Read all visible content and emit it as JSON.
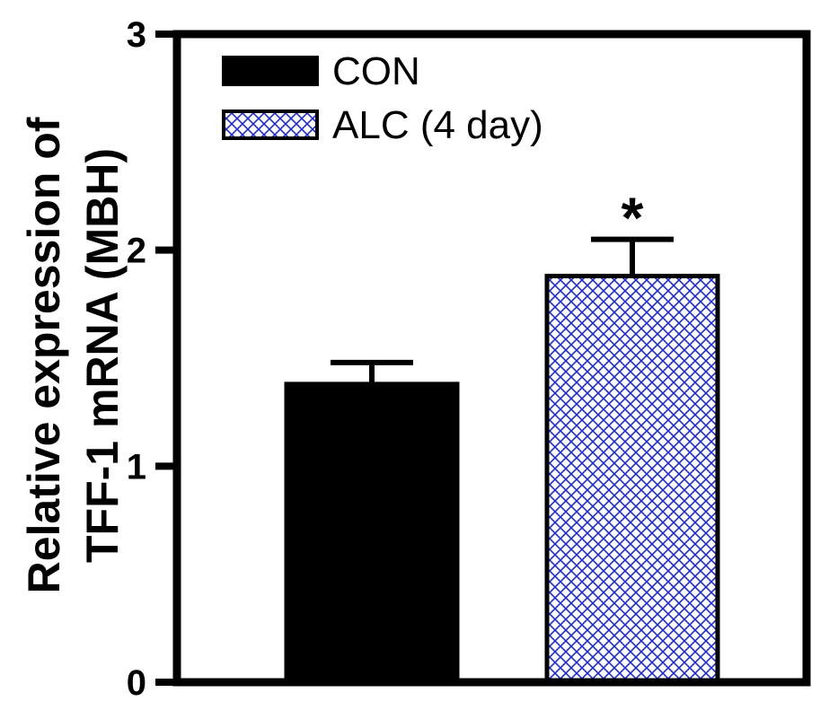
{
  "chart_data": {
    "type": "bar",
    "title": "",
    "xlabel": "",
    "ylabel_lines": [
      "Relative expression of",
      "TFF-1 mRNA (MBH)"
    ],
    "ylim": [
      0,
      3
    ],
    "yticks": [
      "0",
      "1",
      "2",
      "3"
    ],
    "grid": false,
    "legend_position": "top-left",
    "categories": [
      "CON",
      "ALC (4 day)"
    ],
    "series": [
      {
        "name": "CON",
        "value": 1.38,
        "error": 0.1,
        "fill": "solid",
        "color": "#000000",
        "significance": ""
      },
      {
        "name": "ALC (4 day)",
        "value": 1.88,
        "error": 0.17,
        "fill": "crosshatch",
        "color": "#1f2bd6",
        "significance": "*"
      }
    ]
  }
}
